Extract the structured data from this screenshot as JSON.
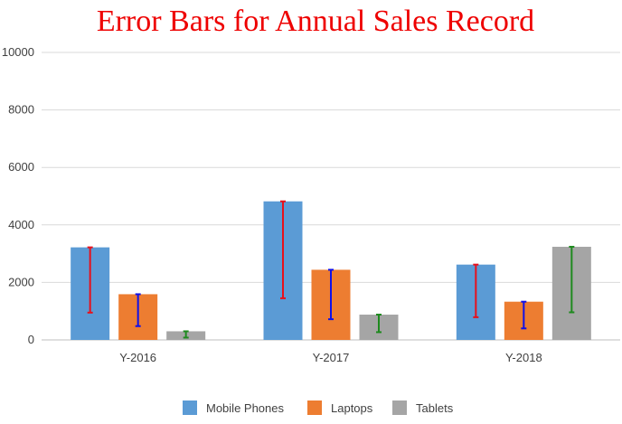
{
  "chart_data": {
    "type": "bar",
    "title": "Error Bars for Annual Sales Record",
    "xlabel": "",
    "ylabel": "",
    "categories": [
      "Y-2016",
      "Y-2017",
      "Y-2018"
    ],
    "ylim": [
      0,
      10000
    ],
    "yticks": [
      0,
      2000,
      4000,
      6000,
      8000,
      10000
    ],
    "grid": true,
    "legend": "bottom",
    "series": [
      {
        "name": "Mobile Phones",
        "color": "#5b9bd5",
        "error_color": "#e8101b",
        "values": [
          3220,
          4820,
          2620
        ],
        "error_low": [
          950,
          1450,
          790
        ]
      },
      {
        "name": "Laptops",
        "color": "#ed7d31",
        "error_color": "#1010e8",
        "values": [
          1590,
          2440,
          1330
        ],
        "error_low": [
          480,
          720,
          400
        ]
      },
      {
        "name": "Tablets",
        "color": "#a5a5a5",
        "error_color": "#1e8a1e",
        "values": [
          300,
          880,
          3240
        ],
        "error_low": [
          80,
          270,
          960
        ]
      }
    ]
  }
}
